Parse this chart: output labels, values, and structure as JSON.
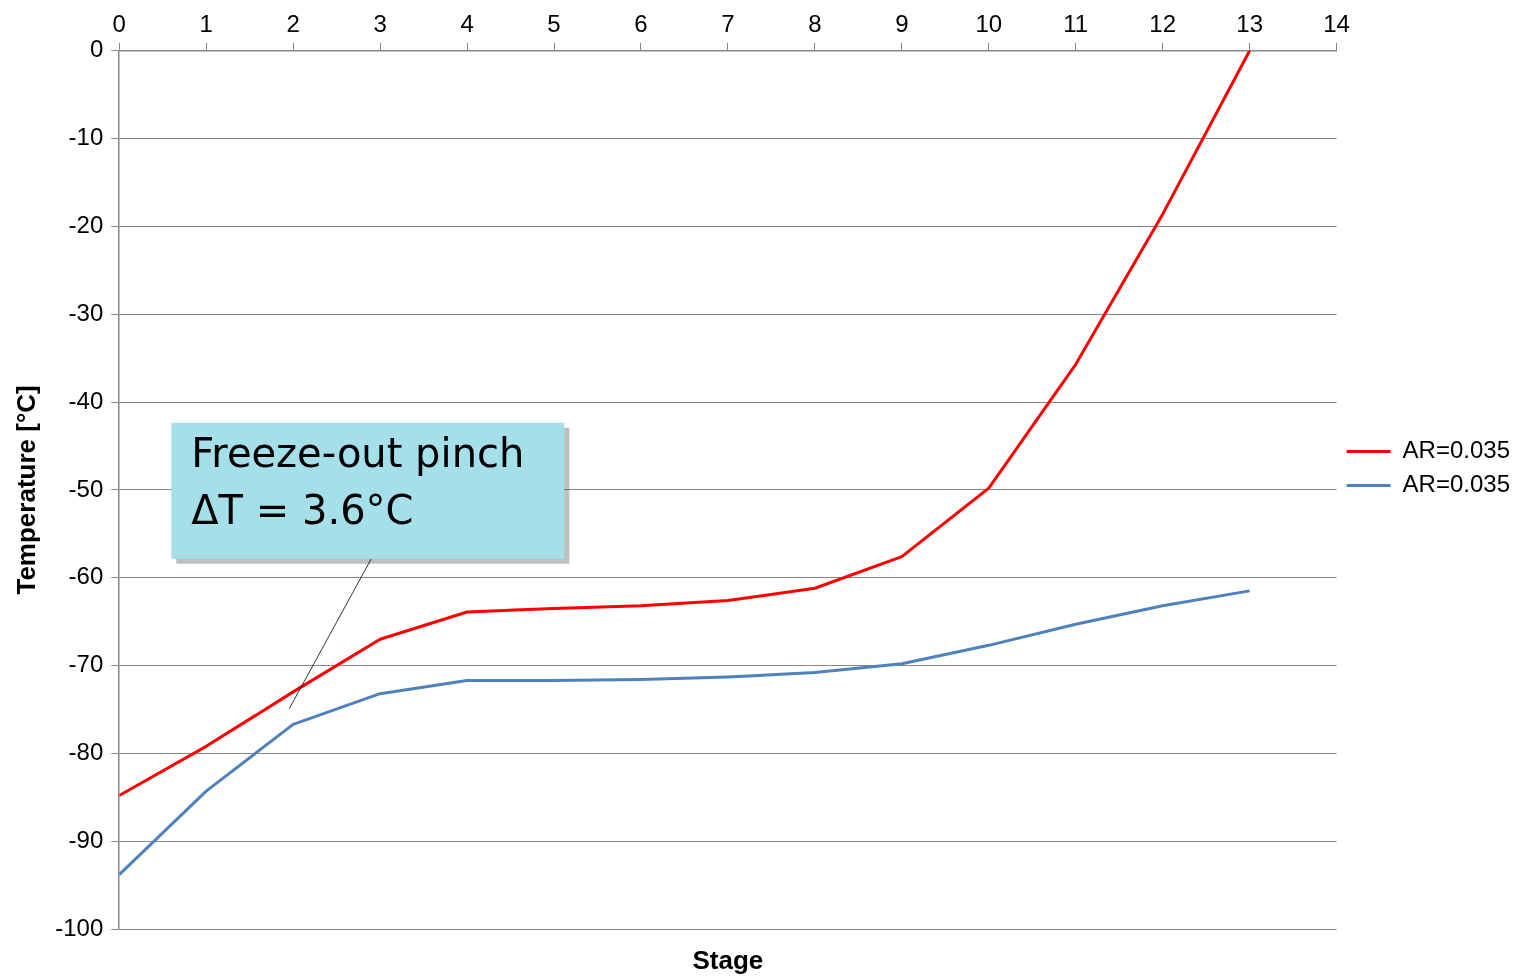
{
  "chart_data": {
    "type": "line",
    "xlabel": "Stage",
    "ylabel": "Temperature [°C]",
    "x": [
      0,
      1,
      2,
      3,
      4,
      5,
      6,
      7,
      8,
      9,
      10,
      11,
      12,
      13
    ],
    "xlim": [
      0,
      14
    ],
    "xticks": [
      0,
      1,
      2,
      3,
      4,
      5,
      6,
      7,
      8,
      9,
      10,
      11,
      12,
      13,
      14
    ],
    "ylim": [
      -100,
      0
    ],
    "yticks": [
      -100,
      -90,
      -80,
      -70,
      -60,
      -50,
      -40,
      -30,
      -20,
      -10,
      0
    ],
    "series": [
      {
        "name": "AR=0.035",
        "color": "#ff0000",
        "values": [
          -84.8,
          -79.2,
          -73.0,
          -67.0,
          -63.9,
          -63.5,
          -63.2,
          -62.6,
          -61.2,
          -57.6,
          -49.8,
          -35.7,
          -18.6,
          0
        ]
      },
      {
        "name": "AR=0.035",
        "color": "#4f81bd",
        "values": [
          -93.8,
          -84.3,
          -76.7,
          -73.2,
          -71.7,
          -71.7,
          -71.6,
          -71.3,
          -70.8,
          -69.8,
          -67.7,
          -65.3,
          -63.2,
          -61.5
        ]
      }
    ],
    "annotations": [
      "Freeze-out pinch\nΔT = 3.6°C"
    ],
    "grid": "y",
    "legend": "right",
    "marker": "none",
    "line_style": "solid"
  }
}
